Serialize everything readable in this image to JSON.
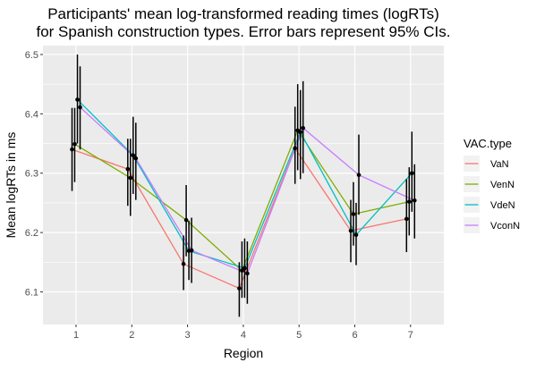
{
  "chart_data": {
    "type": "line",
    "title": "Participants' mean log-transformed reading times (logRTs)",
    "subtitle": "for Spanish construction types. Error bars represent 95% CIs.",
    "xlabel": "Region",
    "ylabel": "Mean logRTs in ms",
    "categories": [
      "1",
      "2",
      "3",
      "4",
      "5",
      "6",
      "7"
    ],
    "y_ticks": [
      "6.1",
      "6.2",
      "6.3",
      "6.4",
      "6.5"
    ],
    "ylim": [
      6.045,
      6.515
    ],
    "grid": true,
    "legend_title": "VAC.type",
    "legend_position": "right",
    "series": [
      {
        "name": "VaN",
        "color": "#F8766D",
        "values": [
          6.34,
          6.307,
          6.147,
          6.106,
          6.342,
          6.203,
          6.223
        ],
        "ci_low": [
          6.27,
          6.245,
          6.103,
          6.058,
          6.282,
          6.15,
          6.167
        ],
        "ci_high": [
          6.41,
          6.358,
          6.195,
          6.15,
          6.412,
          6.255,
          6.29
        ]
      },
      {
        "name": "VenN",
        "color": "#7CAE00",
        "values": [
          6.349,
          6.292,
          6.221,
          6.136,
          6.372,
          6.231,
          6.252
        ],
        "ci_low": [
          6.285,
          6.228,
          6.16,
          6.09,
          6.305,
          6.178,
          6.195
        ],
        "ci_high": [
          6.41,
          6.358,
          6.28,
          6.185,
          6.45,
          6.285,
          6.31
        ]
      },
      {
        "name": "VdeN",
        "color": "#00BFC4",
        "values": [
          6.424,
          6.33,
          6.169,
          6.14,
          6.369,
          6.196,
          6.3
        ],
        "ci_low": [
          6.35,
          6.265,
          6.12,
          6.09,
          6.29,
          6.145,
          6.235
        ],
        "ci_high": [
          6.5,
          6.395,
          6.22,
          6.19,
          6.44,
          6.25,
          6.37
        ]
      },
      {
        "name": "VconN",
        "color": "#C77CFF",
        "values": [
          6.411,
          6.325,
          6.17,
          6.131,
          6.376,
          6.297,
          6.254
        ],
        "ci_low": [
          6.34,
          6.255,
          6.115,
          6.08,
          6.3,
          6.23,
          6.19
        ],
        "ci_high": [
          6.48,
          6.385,
          6.225,
          6.185,
          6.455,
          6.365,
          6.315
        ]
      }
    ]
  }
}
